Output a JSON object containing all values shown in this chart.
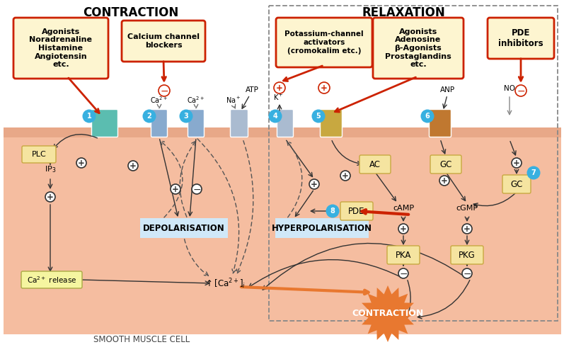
{
  "title_contraction": "CONTRACTION",
  "title_relaxation": "RELAXATION",
  "bottom_label": "SMOOTH MUSCLE CELL",
  "box_agonists_contraction": "Agonists\nNoradrenaline\nHistamine\nAngiotensin\netc.",
  "box_calcium_blockers": "Calcium channel\nblockers",
  "box_potassium": "Potassium-channel\nactivators\n(cromokalim etc.)",
  "box_agonists_relaxation": "Agonists\nAdenosine\nβ-Agonists\nProstaglandins\netc.",
  "box_pde_inhibitors": "PDE\ninhibitors",
  "cell_bg": "#f5bda0",
  "white_bg": "#ffffff",
  "drug_box_fill": "#fdf5d0",
  "drug_box_edge": "#cc2200",
  "channel1_color": "#5bbdb0",
  "channel2_color": "#88aace",
  "channel3_color": "#88aace",
  "channel4_color": "#aabbd0",
  "channel5_color": "#c8a840",
  "channel6_color": "#c07830",
  "channel_atp_color": "#aabbd0",
  "plc_fill": "#f5e898",
  "plc_edge": "#c8a840",
  "tan_fill": "#f5e4a0",
  "tan_edge": "#c8a840",
  "blue_box_fill": "#d0e8f8",
  "yellow_box_fill": "#f5f5a0",
  "yellow_box_edge": "#aaaa44",
  "orange_burst": "#e87830",
  "contraction_text": "CONTRACTION",
  "num_circle_color": "#38b0e0",
  "relax_box_edge": "#888888"
}
